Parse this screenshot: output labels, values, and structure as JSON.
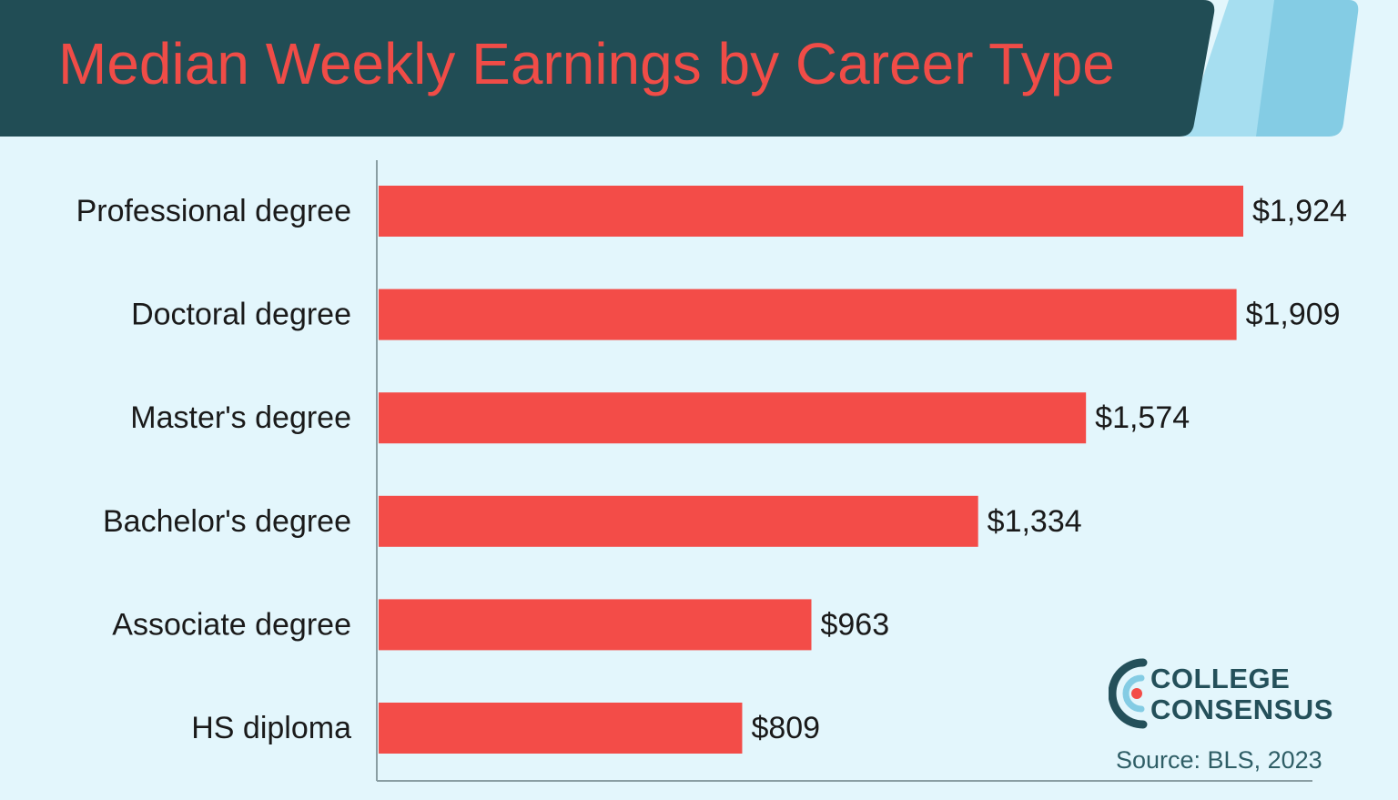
{
  "colors": {
    "header_bg": "#214d55",
    "accent_light": "#a6def0",
    "accent_mid": "#84cce4",
    "title_color": "#f04c47",
    "bar_color": "#f34c48",
    "axis_color": "#8a9ea3",
    "logo_color": "#24505a"
  },
  "chart_data": {
    "type": "bar",
    "orientation": "horizontal",
    "title": "Median Weekly Earnings by Career Type",
    "categories": [
      "Professional degree",
      "Doctoral degree",
      "Master's degree",
      "Bachelor's degree",
      "Associate degree",
      "HS diploma"
    ],
    "values": [
      1924,
      1909,
      1574,
      1334,
      963,
      809
    ],
    "value_labels": [
      "$1,924",
      "$1,909",
      "$1,574",
      "$1,334",
      "$963",
      "$809"
    ],
    "xlim": [
      0,
      1924
    ],
    "grid": false,
    "legend": "none"
  },
  "logo": {
    "line1": "COLLEGE",
    "line2": "CONSENSUS"
  },
  "source": "Source: BLS, 2023"
}
